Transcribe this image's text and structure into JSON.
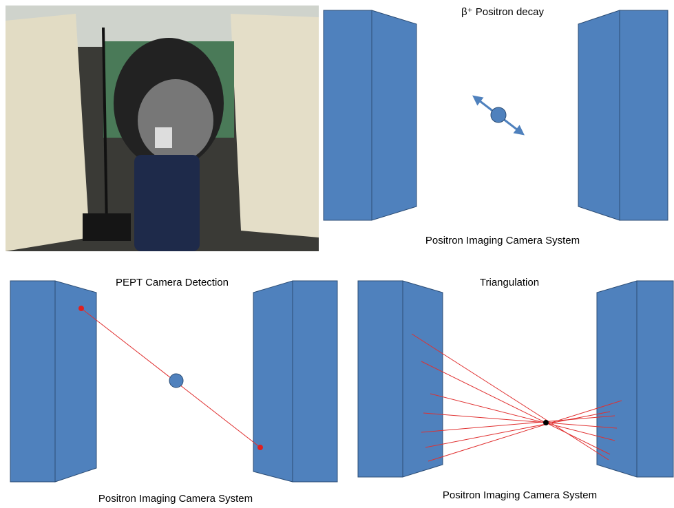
{
  "panels": [
    {
      "title": "β⁺ Positron decay",
      "caption": "Positron Imaging Camera System"
    },
    {
      "title": "PEPT Camera Detection",
      "caption": "Positron Imaging Camera System"
    },
    {
      "title": "Triangulation",
      "caption": "Positron Imaging Camera System"
    }
  ]
}
